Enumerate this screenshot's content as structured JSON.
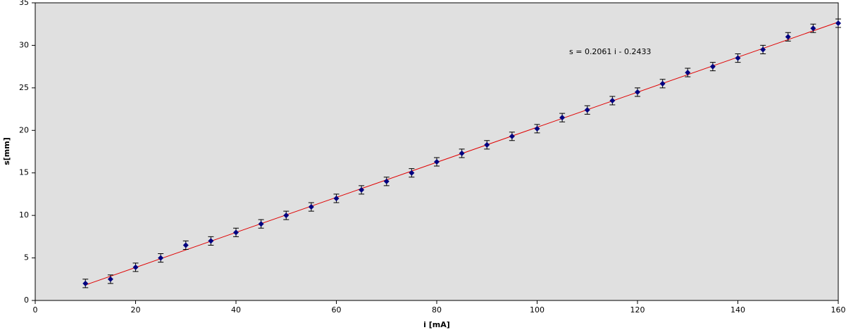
{
  "chart_data": {
    "type": "scatter",
    "x_label": "i [mA]",
    "y_label": "s[mm]",
    "annotation": "s = 0.2061 i - 0.2433",
    "x": [
      10,
      15,
      20,
      25,
      30,
      35,
      40,
      45,
      50,
      55,
      60,
      65,
      70,
      75,
      80,
      85,
      90,
      95,
      100,
      105,
      110,
      115,
      120,
      125,
      130,
      135,
      140,
      145,
      150,
      155,
      160
    ],
    "series": [
      {
        "color": "#000080",
        "values": [
          2.0,
          2.5,
          3.9,
          5.0,
          6.5,
          7.0,
          8.0,
          9.0,
          10.0,
          11.0,
          12.0,
          13.0,
          14.0,
          15.0,
          16.3,
          17.3,
          18.3,
          19.3,
          20.2,
          21.5,
          22.4,
          23.5,
          24.5,
          25.5,
          26.8,
          27.5,
          28.5,
          29.5,
          31.0,
          32.0,
          32.6
        ],
        "errors": [
          0.5,
          0.5,
          0.5,
          0.5,
          0.5,
          0.5,
          0.5,
          0.5,
          0.5,
          0.5,
          0.5,
          0.5,
          0.5,
          0.5,
          0.5,
          0.5,
          0.5,
          0.5,
          0.5,
          0.5,
          0.5,
          0.5,
          0.5,
          0.5,
          0.5,
          0.5,
          0.5,
          0.5,
          0.5,
          0.5,
          0.5
        ]
      }
    ],
    "trendline": {
      "slope": 0.2061,
      "intercept": -0.2433,
      "color": "#e00000"
    },
    "xlim": [
      0,
      160
    ],
    "xticks": [
      0,
      20,
      40,
      60,
      80,
      100,
      120,
      140,
      160
    ],
    "ylim": [
      0,
      35
    ],
    "yticks": [
      0,
      5,
      10,
      15,
      20,
      25,
      30,
      35
    ],
    "plot_background": "#e0e0e0"
  }
}
